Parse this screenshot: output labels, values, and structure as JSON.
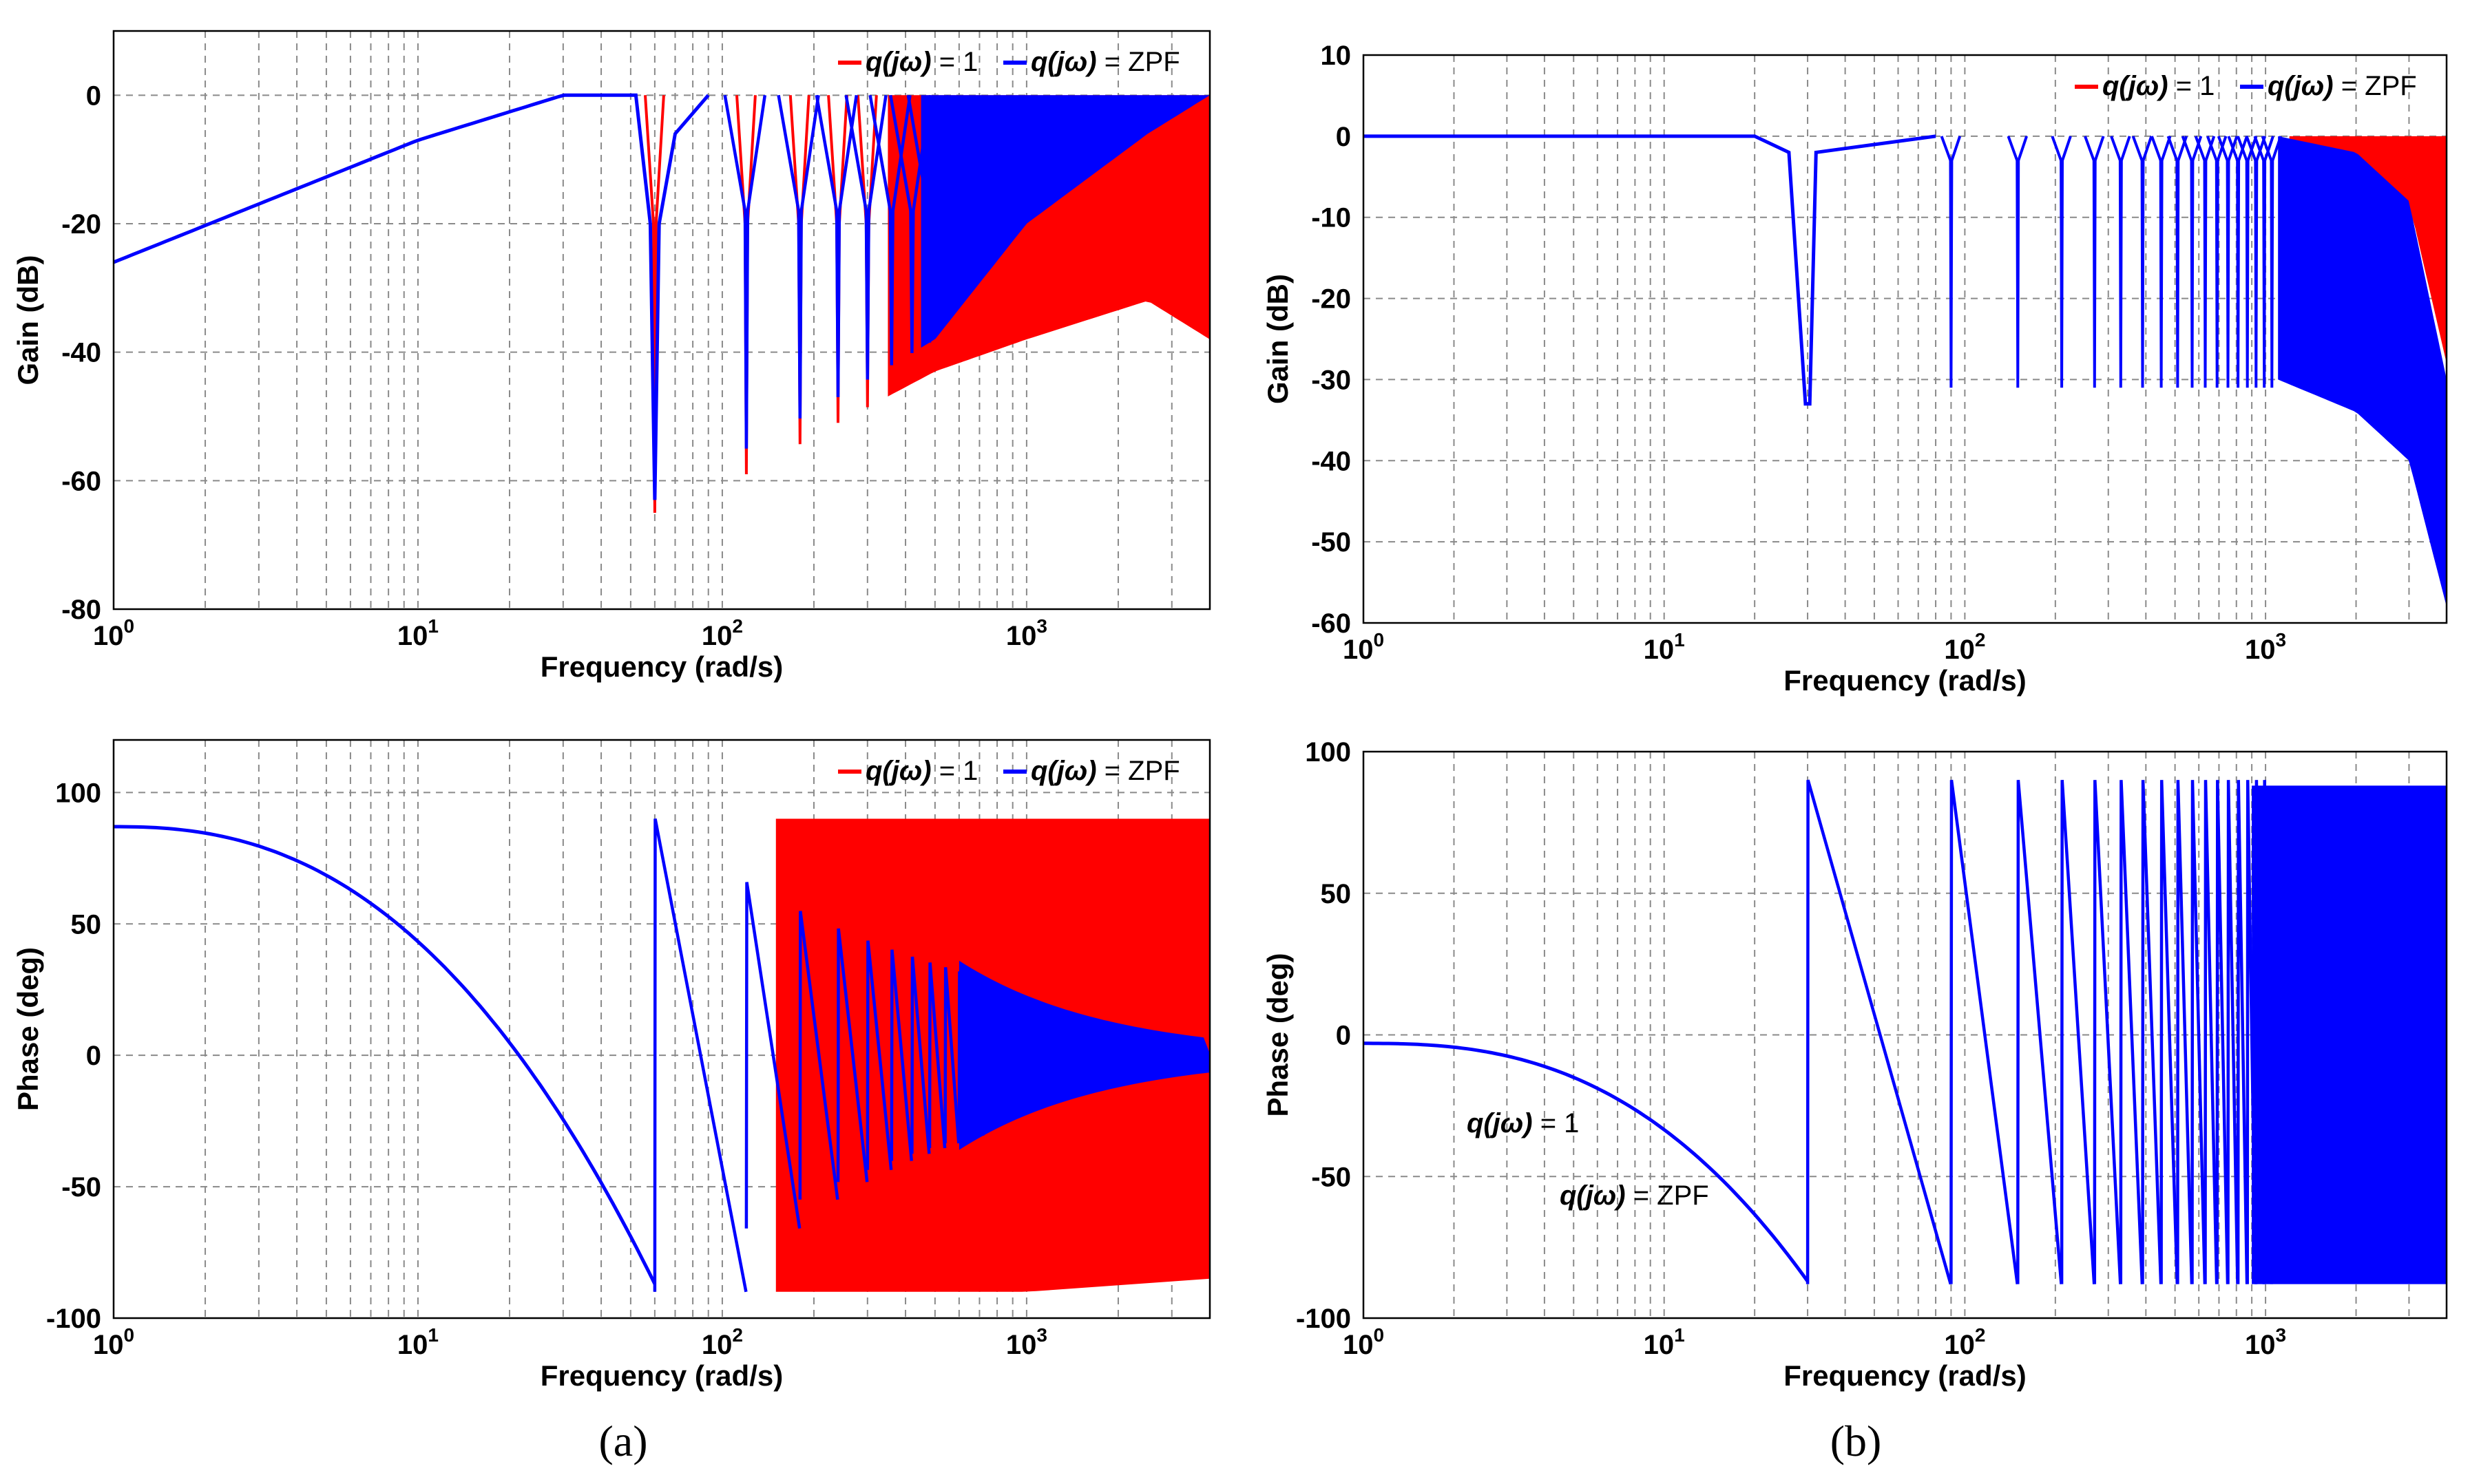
{
  "panel_labels": [
    "(a)",
    "(b)"
  ],
  "chart_data": [
    {
      "id": "a-gain",
      "type": "line",
      "xscale": "log",
      "xlim": [
        1,
        4000
      ],
      "ylim": [
        -80,
        10
      ],
      "yticks": [
        0,
        -20,
        -40,
        -60,
        -80
      ],
      "xticks": [
        {
          "base": "10",
          "exp": "0"
        },
        {
          "base": "10",
          "exp": "1"
        },
        {
          "base": "10",
          "exp": "2"
        },
        {
          "base": "10",
          "exp": "3"
        }
      ],
      "xlabel": "Frequency  (rad/s)",
      "ylabel": "Gain  (dB)",
      "legend": {
        "position": "top-right",
        "show": true
      },
      "series": [
        {
          "name_prefix": "q(jω)",
          "name_suffix": " = 1",
          "color": "#ff0000",
          "notch_spacing_rad_s": 60,
          "envelope_upper_db": 0,
          "envelope_lower_db": [
            [
              60,
              -65
            ],
            [
              120,
              -59
            ],
            [
              240,
              -51
            ],
            [
              500,
              -43
            ],
            [
              1000,
              -38
            ],
            [
              2500,
              -32
            ],
            [
              4000,
              -38
            ]
          ]
        },
        {
          "name_prefix": "q(jω)",
          "name_suffix": " = ZPF",
          "color": "#0000ff",
          "notch_spacing_rad_s": 60,
          "low_freq_slope_points": [
            [
              1,
              -26
            ],
            [
              10,
              -7
            ],
            [
              30,
              0
            ]
          ],
          "envelope_lower_db": [
            [
              60,
              -63
            ],
            [
              120,
              -55
            ],
            [
              240,
              -47
            ],
            [
              500,
              -38
            ],
            [
              1000,
              -20
            ],
            [
              2500,
              -6
            ],
            [
              4000,
              0
            ]
          ]
        }
      ]
    },
    {
      "id": "a-phase",
      "type": "line",
      "xscale": "log",
      "xlim": [
        1,
        4000
      ],
      "ylim": [
        -100,
        120
      ],
      "yticks": [
        100,
        50,
        0,
        -50,
        -100
      ],
      "xticks": [
        {
          "base": "10",
          "exp": "0"
        },
        {
          "base": "10",
          "exp": "1"
        },
        {
          "base": "10",
          "exp": "2"
        },
        {
          "base": "10",
          "exp": "3"
        }
      ],
      "xlabel": "Frequency  (rad/s)",
      "ylabel": "Phase  (deg)",
      "legend": {
        "position": "top-right",
        "show": true
      },
      "series": [
        {
          "name_prefix": "q(jω)",
          "name_suffix": " = 1",
          "color": "#ff0000",
          "phase_limits_deg": [
            -90,
            90
          ]
        },
        {
          "name_prefix": "q(jω)",
          "name_suffix": " = ZPF",
          "color": "#0000ff",
          "phase_start_deg": 87,
          "phase_at_60_deg": -87,
          "decays_to_deg": 0
        }
      ]
    },
    {
      "id": "b-gain",
      "type": "line",
      "xscale": "log",
      "xlim": [
        1,
        4000
      ],
      "ylim": [
        -60,
        10
      ],
      "yticks": [
        10,
        0,
        -10,
        -20,
        -30,
        -40,
        -50,
        -60
      ],
      "xticks": [
        {
          "base": "10",
          "exp": "0"
        },
        {
          "base": "10",
          "exp": "1"
        },
        {
          "base": "10",
          "exp": "2"
        },
        {
          "base": "10",
          "exp": "3"
        }
      ],
      "xlabel": "Frequency  (rad/s)",
      "ylabel": "Gain  (dB)",
      "legend": {
        "position": "top-right",
        "show": true
      },
      "series": [
        {
          "name_prefix": "q(jω)",
          "name_suffix": " = 1",
          "color": "#ff0000",
          "notch_spacing_rad_s": 60,
          "first_notch_rad_s": 30,
          "notch_depth_db": -31
        },
        {
          "name_prefix": "q(jω)",
          "name_suffix": " = ZPF",
          "color": "#0000ff",
          "notch_spacing_rad_s": 60,
          "first_notch_rad_s": 30,
          "notch_depth_db": -31,
          "rolloff_end_db": -58
        }
      ]
    },
    {
      "id": "b-phase",
      "type": "line",
      "xscale": "log",
      "xlim": [
        1,
        4000
      ],
      "ylim": [
        -100,
        100
      ],
      "yticks": [
        100,
        50,
        0,
        -50,
        -100
      ],
      "xticks": [
        {
          "base": "10",
          "exp": "0"
        },
        {
          "base": "10",
          "exp": "1"
        },
        {
          "base": "10",
          "exp": "2"
        },
        {
          "base": "10",
          "exp": "3"
        }
      ],
      "xlabel": "Frequency  (rad/s)",
      "ylabel": "Phase  (deg)",
      "legend": {
        "position": "none",
        "show": false
      },
      "annotations": [
        {
          "prefix": "q(jω)",
          "suffix": " = 1"
        },
        {
          "prefix": "q(jω)",
          "suffix": " = ZPF"
        }
      ],
      "series": [
        {
          "name_prefix": "q(jω)",
          "name_suffix": " = ZPF",
          "color": "#0000ff",
          "phase_start_deg": -3,
          "phase_at_30_deg": -87,
          "phase_limits_deg": [
            -90,
            90
          ]
        }
      ]
    }
  ]
}
